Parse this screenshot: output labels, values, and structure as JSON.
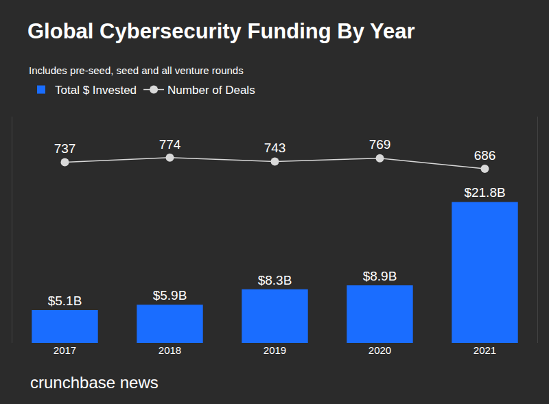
{
  "chart_data": {
    "type": "bar",
    "title": "Global Cybersecurity Funding By Year",
    "subtitle": "Includes pre-seed, seed and all venture rounds",
    "annotations": [
      "crunchbase news"
    ],
    "categories": [
      "2017",
      "2018",
      "2019",
      "2020",
      "2021"
    ],
    "series": [
      {
        "name": "Total $ Invested",
        "type": "bar",
        "color": "#1a6dff",
        "values": [
          5.1,
          5.9,
          8.3,
          8.9,
          21.8
        ],
        "value_labels": [
          "$5.1B",
          "$5.9B",
          "$8.3B",
          "$8.9B",
          "$21.8B"
        ]
      },
      {
        "name": "Number of Deals",
        "type": "line",
        "color": "#d9d9d9",
        "marker": "circle",
        "axis": "y2",
        "values": [
          737,
          774,
          743,
          769,
          686
        ]
      }
    ],
    "ylim": [
      0,
      35
    ],
    "y2lim": [
      -700,
      1100
    ],
    "tick_labels": "x",
    "grid": false,
    "legend": "top-left",
    "data_labels": true
  }
}
